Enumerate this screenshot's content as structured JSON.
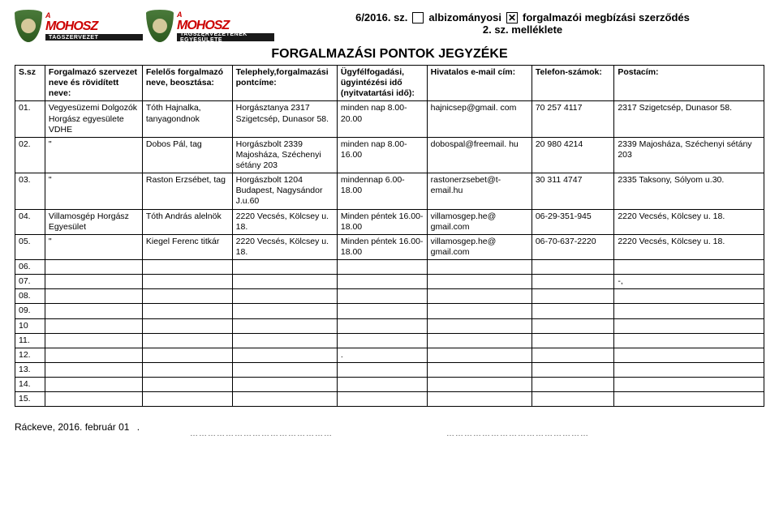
{
  "header": {
    "docnum": "6/2016. sz.",
    "box1_label": "albizományosi",
    "box2_label": "forgalmazói megbízási szerződés",
    "line2": "2. sz. melléklete",
    "logo_sub1": "TAGSZERVEZET",
    "logo_sub2": "TAGSZERVEZETÉNEK EGYESÜLETE",
    "logo_a": "A",
    "logo_name": "MOHOSZ"
  },
  "main_title": "FORGALMAZÁSI PONTOK JEGYZÉKE",
  "columns": [
    "S.sz",
    "Forgalmazó szervezet neve és rövidített neve:",
    "Felelős forgalmazó neve, beosztása:",
    "Telephely,forgalmazási pontcíme:",
    "Ügyfélfogadási, ügyintézési idő (nyitvatartási idő):",
    "Hivatalos e-mail cím:",
    "Telefon-számok:",
    "Postacím:"
  ],
  "rows": [
    {
      "n": "01.",
      "org": "Vegyesüzemi Dolgozók Horgász egyesülete VDHE",
      "resp": "Tóth Hajnalka, tanyagondnok",
      "site": "Horgásztanya 2317 Szigetcsép, Dunasor 58.",
      "hours": "minden nap 8.00-20.00",
      "email": "hajnicsep@gmail. com",
      "tel": "70 257 4117",
      "post": "2317 Szigetcsép, Dunasor 58."
    },
    {
      "n": "02.",
      "org": "\"",
      "resp": "Dobos Pál, tag",
      "site": "Horgászbolt 2339 Majosháza, Széchenyi sétány 203",
      "hours": "minden nap 8.00-16.00",
      "email": "dobospal@freemail. hu",
      "tel": "20 980 4214",
      "post": "2339 Majosháza, Széchenyi sétány 203"
    },
    {
      "n": "03.",
      "org": "\"",
      "resp": "Raston Erzsébet, tag",
      "site": "Horgászbolt 1204 Budapest, Nagysándor J.u.60",
      "hours": "mindennap 6.00-18.00",
      "email": "rastonerzsebet@t-email.hu",
      "tel": "30 311 4747",
      "post": "2335 Taksony, Sólyom u.30."
    },
    {
      "n": "04.",
      "org": "Villamosgép Horgász Egyesület",
      "resp": "Tóth András alelnök",
      "site": "2220 Vecsés, Kölcsey u. 18.",
      "hours": "Minden péntek 16.00-18.00",
      "email": "villamosgep.he@ gmail.com",
      "tel": "06-29-351-945",
      "post": "2220 Vecsés, Kölcsey u. 18."
    },
    {
      "n": "05.",
      "org": "\"",
      "resp": "Kiegel Ferenc titkár",
      "site": "2220 Vecsés, Kölcsey u. 18.",
      "hours": "Minden péntek 16.00-18.00",
      "email": "villamosgep.he@ gmail.com",
      "tel": "06-70-637-2220",
      "post": "2220 Vecsés, Kölcsey u. 18."
    },
    {
      "n": "06.",
      "org": "",
      "resp": "",
      "site": "",
      "hours": "",
      "email": "",
      "tel": "",
      "post": ""
    },
    {
      "n": "07.",
      "org": "",
      "resp": "",
      "site": "",
      "hours": "",
      "email": "",
      "tel": "",
      "post": "-,"
    },
    {
      "n": "08.",
      "org": "",
      "resp": "",
      "site": "",
      "hours": "",
      "email": "",
      "tel": "",
      "post": ""
    },
    {
      "n": "09.",
      "org": "",
      "resp": "",
      "site": "",
      "hours": "",
      "email": "",
      "tel": "",
      "post": ""
    },
    {
      "n": "10",
      "org": "",
      "resp": "",
      "site": "",
      "hours": "",
      "email": "",
      "tel": "",
      "post": ""
    },
    {
      "n": "11.",
      "org": "",
      "resp": "",
      "site": "",
      "hours": "",
      "email": "",
      "tel": "",
      "post": ""
    },
    {
      "n": "12.",
      "org": "",
      "resp": "",
      "site": "",
      "hours": ".",
      "email": "",
      "tel": "",
      "post": ""
    },
    {
      "n": "13.",
      "org": "",
      "resp": "",
      "site": "",
      "hours": "",
      "email": "",
      "tel": "",
      "post": ""
    },
    {
      "n": "14.",
      "org": "",
      "resp": "",
      "site": "",
      "hours": "",
      "email": "",
      "tel": "",
      "post": ""
    },
    {
      "n": "15.",
      "org": "",
      "resp": "",
      "site": "",
      "hours": "",
      "email": "",
      "tel": "",
      "post": ""
    }
  ],
  "footer": {
    "place_date": "Ráckeve, 2016. február 01",
    "dotline": "…………………………………………"
  }
}
